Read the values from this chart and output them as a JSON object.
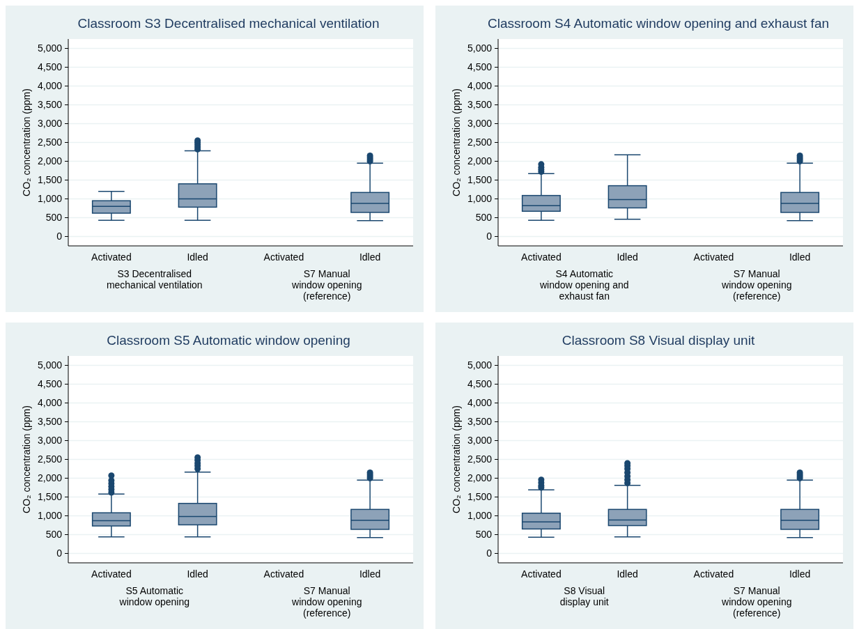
{
  "chart_data": [
    {
      "type": "box",
      "title": "Classroom S3 Decentralised mechanical ventilation",
      "ylabel": "CO₂ concentration (ppm)",
      "categories": [
        "Activated",
        "Idled",
        "Activated",
        "Idled"
      ],
      "annotations": [
        "S3 Decentralised\nmechanical ventilation",
        "S7 Manual\nwindow opening\n(reference)"
      ],
      "ylim": [
        -250,
        5250
      ],
      "yticks": [
        {
          "value": 0,
          "label": "0"
        },
        {
          "value": 500,
          "label": "500"
        },
        {
          "value": 1000,
          "label": "1,000"
        },
        {
          "value": 1500,
          "label": "1,500"
        },
        {
          "value": 2000,
          "label": "2,000"
        },
        {
          "value": 2500,
          "label": "2,500"
        },
        {
          "value": 3000,
          "label": "3,000"
        },
        {
          "value": 3500,
          "label": "3,500"
        },
        {
          "value": 4000,
          "label": "4,000"
        },
        {
          "value": 4500,
          "label": "4,500"
        },
        {
          "value": 5000,
          "label": "5,000"
        }
      ],
      "grid": "y",
      "color": "#8da2b8",
      "boxes": [
        {
          "low": 430,
          "q1": 620,
          "median": 800,
          "q3": 950,
          "high": 1200
        },
        {
          "low": 430,
          "q1": 780,
          "median": 1000,
          "q3": 1400,
          "high": 2280,
          "outliers": [
            2320,
            2380,
            2440,
            2500,
            2550
          ]
        },
        null,
        {
          "low": 420,
          "q1": 640,
          "median": 880,
          "q3": 1170,
          "high": 1950,
          "outliers": [
            2000,
            2050,
            2100,
            2150
          ]
        }
      ]
    },
    {
      "type": "box",
      "title": "Classroom S4 Automatic window opening and exhaust fan",
      "ylabel": "CO₂ concentration (ppm)",
      "categories": [
        "Activated",
        "Idled",
        "Activated",
        "Idled"
      ],
      "annotations": [
        "S4 Automatic\nwindow opening and\nexhaust fan",
        "S7 Manual\nwindow opening\n(reference)"
      ],
      "ylim": [
        -250,
        5250
      ],
      "yticks": [
        {
          "value": 0,
          "label": "0"
        },
        {
          "value": 500,
          "label": "500"
        },
        {
          "value": 1000,
          "label": "1,000"
        },
        {
          "value": 1500,
          "label": "1,500"
        },
        {
          "value": 2000,
          "label": "2,000"
        },
        {
          "value": 2500,
          "label": "2,500"
        },
        {
          "value": 3000,
          "label": "3,000"
        },
        {
          "value": 3500,
          "label": "3,500"
        },
        {
          "value": 4000,
          "label": "4,000"
        },
        {
          "value": 4500,
          "label": "4,500"
        },
        {
          "value": 5000,
          "label": "5,000"
        }
      ],
      "grid": "y",
      "color": "#8da2b8",
      "boxes": [
        {
          "low": 430,
          "q1": 670,
          "median": 820,
          "q3": 1090,
          "high": 1670,
          "outliers": [
            1720,
            1780,
            1840,
            1920
          ]
        },
        {
          "low": 460,
          "q1": 760,
          "median": 980,
          "q3": 1350,
          "high": 2170
        },
        null,
        {
          "low": 420,
          "q1": 640,
          "median": 880,
          "q3": 1170,
          "high": 1950,
          "outliers": [
            2000,
            2050,
            2100,
            2150
          ]
        }
      ]
    },
    {
      "type": "box",
      "title": "Classroom S5 Automatic window opening",
      "ylabel": "CO₂ concentration (ppm)",
      "categories": [
        "Activated",
        "Idled",
        "Activated",
        "Idled"
      ],
      "annotations": [
        "S5 Automatic\nwindow opening",
        "S7 Manual\nwindow opening\n(reference)"
      ],
      "ylim": [
        -250,
        5250
      ],
      "yticks": [
        {
          "value": 0,
          "label": "0"
        },
        {
          "value": 500,
          "label": "500"
        },
        {
          "value": 1000,
          "label": "1,000"
        },
        {
          "value": 1500,
          "label": "1,500"
        },
        {
          "value": 2000,
          "label": "2,000"
        },
        {
          "value": 2500,
          "label": "2,500"
        },
        {
          "value": 3000,
          "label": "3,000"
        },
        {
          "value": 3500,
          "label": "3,500"
        },
        {
          "value": 4000,
          "label": "4,000"
        },
        {
          "value": 4500,
          "label": "4,500"
        },
        {
          "value": 5000,
          "label": "5,000"
        }
      ],
      "grid": "y",
      "color": "#8da2b8",
      "boxes": [
        {
          "low": 440,
          "q1": 730,
          "median": 870,
          "q3": 1080,
          "high": 1580,
          "outliers": [
            1620,
            1700,
            1780,
            1860,
            1940,
            2070
          ]
        },
        {
          "low": 440,
          "q1": 760,
          "median": 980,
          "q3": 1330,
          "high": 2160,
          "outliers": [
            2250,
            2330,
            2400,
            2480,
            2550
          ]
        },
        null,
        {
          "low": 420,
          "q1": 640,
          "median": 880,
          "q3": 1170,
          "high": 1950,
          "outliers": [
            2000,
            2050,
            2100,
            2150
          ]
        }
      ]
    },
    {
      "type": "box",
      "title": "Classroom S8 Visual display unit",
      "ylabel": "CO₂ concentration (ppm)",
      "categories": [
        "Activated",
        "Idled",
        "Activated",
        "Idled"
      ],
      "annotations": [
        "S8 Visual\ndisplay unit",
        "S7 Manual\nwindow opening\n(reference)"
      ],
      "ylim": [
        -250,
        5250
      ],
      "yticks": [
        {
          "value": 0,
          "label": "0"
        },
        {
          "value": 500,
          "label": "500"
        },
        {
          "value": 1000,
          "label": "1,000"
        },
        {
          "value": 1500,
          "label": "1,500"
        },
        {
          "value": 2000,
          "label": "2,000"
        },
        {
          "value": 2500,
          "label": "2,500"
        },
        {
          "value": 3000,
          "label": "3,000"
        },
        {
          "value": 3500,
          "label": "3,500"
        },
        {
          "value": 4000,
          "label": "4,000"
        },
        {
          "value": 4500,
          "label": "4,500"
        },
        {
          "value": 5000,
          "label": "5,000"
        }
      ],
      "grid": "y",
      "color": "#8da2b8",
      "boxes": [
        {
          "low": 430,
          "q1": 650,
          "median": 840,
          "q3": 1070,
          "high": 1690,
          "outliers": [
            1750,
            1800,
            1880,
            1960
          ]
        },
        {
          "low": 440,
          "q1": 740,
          "median": 890,
          "q3": 1170,
          "high": 1810,
          "outliers": [
            1870,
            1960,
            2050,
            2150,
            2250,
            2330,
            2400
          ]
        },
        null,
        {
          "low": 420,
          "q1": 640,
          "median": 880,
          "q3": 1170,
          "high": 1950,
          "outliers": [
            2000,
            2050,
            2100,
            2150
          ]
        }
      ]
    }
  ]
}
